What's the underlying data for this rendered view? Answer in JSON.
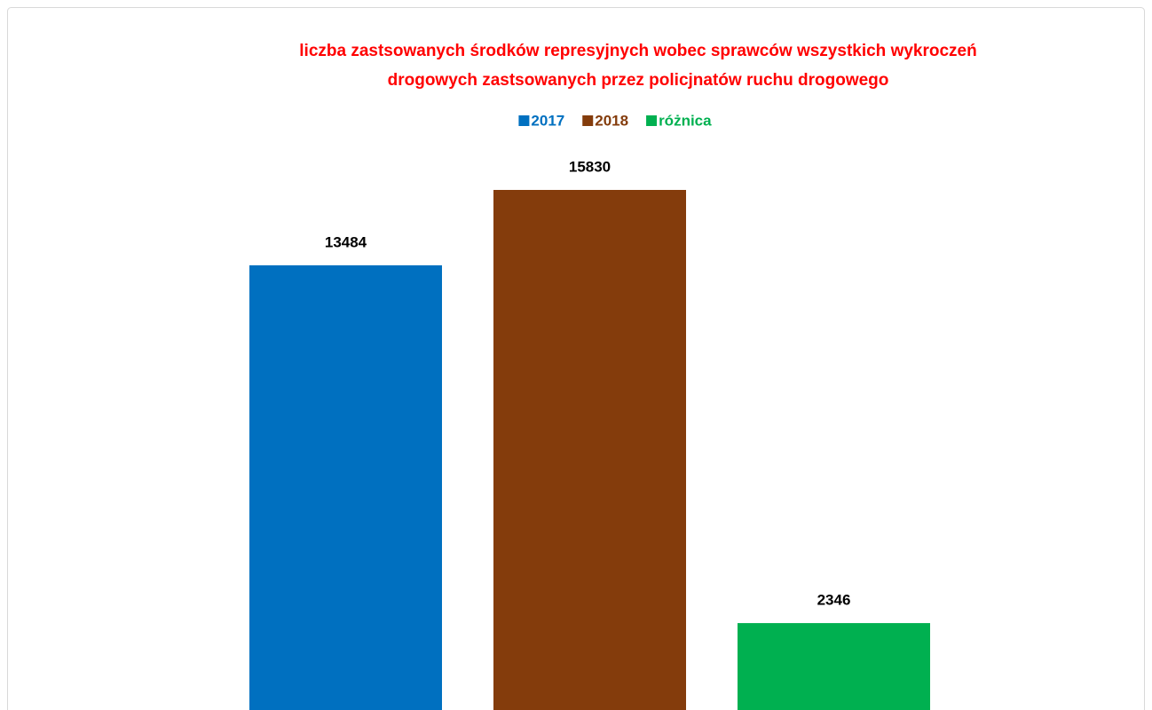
{
  "chart_data": {
    "type": "bar",
    "title": [
      "liczba zastsowanych środków represyjnych wobec sprawców wszystkich wykroczeń",
      "drogowych zastsowanych przez policjnatów ruchu drogowego"
    ],
    "title_color": "#ff0000",
    "categories": [
      null
    ],
    "series": [
      {
        "name": "2017",
        "color": "#0070c0",
        "values": [
          13484
        ]
      },
      {
        "name": "2018",
        "color": "#843c0c",
        "values": [
          15830
        ]
      },
      {
        "name": "różnica",
        "color": "#00b050",
        "values": [
          2346
        ]
      }
    ],
    "legend": "top"
  }
}
